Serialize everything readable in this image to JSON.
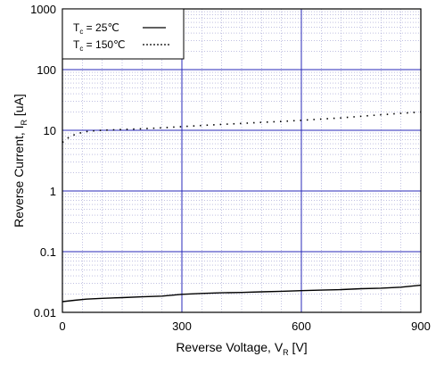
{
  "chart_data": {
    "type": "line",
    "xlabel": {
      "text": "Reverse Voltage, V",
      "sub": "R",
      "unit": " [V]"
    },
    "ylabel": {
      "text": "Reverse Current, I",
      "sub": "R",
      "unit": " [uA]"
    },
    "xlim": [
      0,
      900
    ],
    "ylim": [
      0.01,
      1000
    ],
    "yscale": "log",
    "x_ticks": [
      0,
      300,
      600,
      900
    ],
    "x_tick_labels": [
      "0",
      "300",
      "600",
      "900"
    ],
    "y_ticks": [
      0.01,
      0.1,
      1,
      10,
      100,
      1000
    ],
    "y_tick_labels": [
      "0.01",
      "0.1",
      "1",
      "10",
      "100",
      "1000"
    ],
    "grid": {
      "major": true,
      "minor": true
    },
    "legend": {
      "position": "top-left",
      "entries": [
        {
          "prefix": "T",
          "sub": "c",
          "rest": " =   25℃",
          "style": "solid"
        },
        {
          "prefix": "T",
          "sub": "c",
          "rest": " = 150℃",
          "style": "dotted"
        }
      ]
    },
    "colors": {
      "major_grid": "#2a2ab8",
      "minor_grid": "#9a9ad0",
      "series": "#000000"
    },
    "series": [
      {
        "temperature": "25℃",
        "style": "solid",
        "x": [
          0,
          30,
          60,
          100,
          150,
          200,
          250,
          300,
          350,
          400,
          450,
          500,
          550,
          600,
          650,
          700,
          750,
          800,
          850,
          900
        ],
        "y": [
          0.015,
          0.0158,
          0.0165,
          0.017,
          0.0175,
          0.018,
          0.0185,
          0.0198,
          0.0205,
          0.021,
          0.0213,
          0.0218,
          0.0222,
          0.0228,
          0.0232,
          0.0237,
          0.0245,
          0.025,
          0.026,
          0.028
        ]
      },
      {
        "temperature": "150℃",
        "style": "dotted",
        "x": [
          0,
          20,
          40,
          60,
          80,
          100,
          150,
          200,
          250,
          300,
          350,
          400,
          450,
          500,
          550,
          600,
          650,
          700,
          750,
          800,
          850,
          900
        ],
        "y": [
          6.3,
          8.0,
          8.9,
          9.5,
          9.8,
          10.0,
          10.3,
          10.6,
          11.0,
          11.5,
          12.0,
          12.5,
          13.0,
          13.5,
          14.0,
          14.6,
          15.3,
          16.0,
          17.0,
          18.0,
          19.0,
          20.0
        ]
      }
    ]
  }
}
